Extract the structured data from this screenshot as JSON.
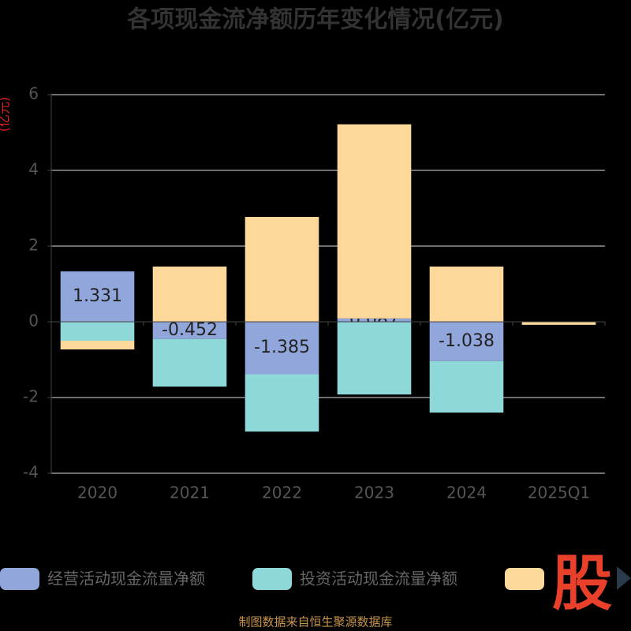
{
  "chart_data": {
    "type": "stacked_bar",
    "title": "各项现金流净额历年变化情况(亿元)",
    "y_label": "(亿元)",
    "categories": [
      "2020",
      "2021",
      "2022",
      "2023",
      "2024",
      "2025Q1"
    ],
    "series": [
      {
        "name": "经营活动现金流量净额",
        "color": "#91a7dc",
        "values": [
          1.331,
          -0.452,
          -1.385,
          0.087,
          -1.038,
          null
        ],
        "labels": true
      },
      {
        "name": "投资活动现金流量净额",
        "color": "#8ed8da",
        "values": [
          -0.5,
          -1.26,
          -1.515,
          -1.92,
          -1.36,
          null
        ]
      },
      {
        "color": "#fdd89b",
        "values": [
          -0.23,
          1.46,
          2.77,
          5.13,
          1.46,
          -0.08
        ]
      }
    ],
    "ylim": [
      -4,
      6
    ],
    "yticks": [
      -4,
      -2,
      0,
      2,
      4,
      6
    ],
    "grid": true,
    "source": "制图数据来自恒生聚源数据库",
    "watermark": "股"
  }
}
